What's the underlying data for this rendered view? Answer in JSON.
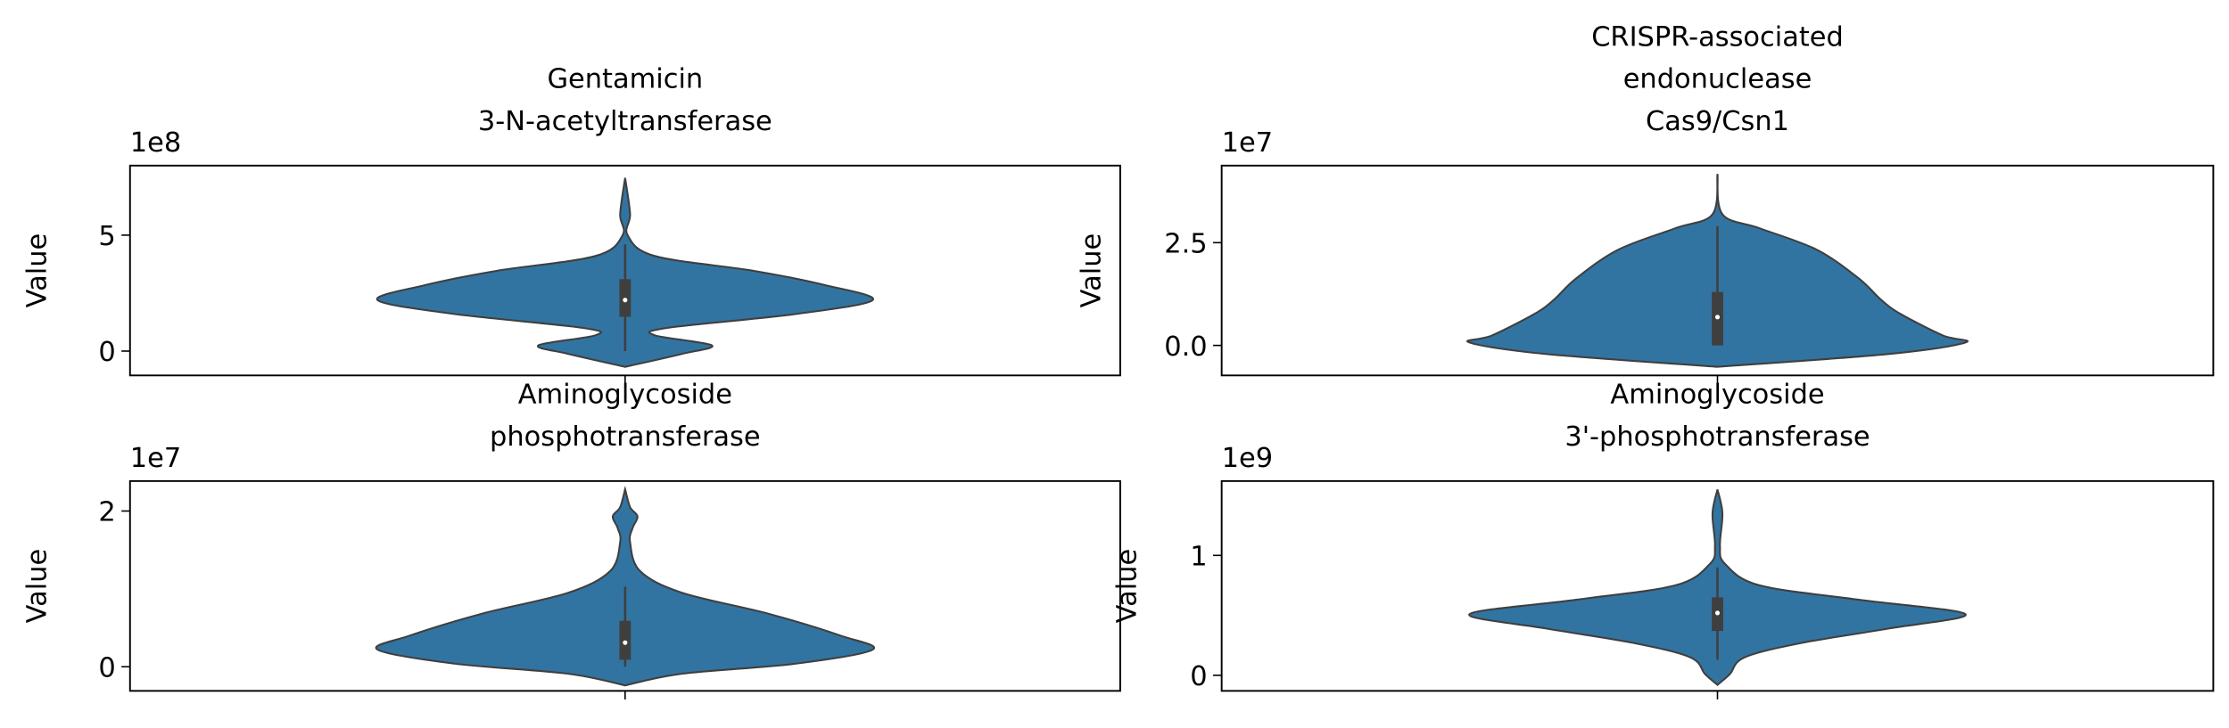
{
  "chart_data": [
    {
      "type": "violin",
      "title": [
        "Gentamicin",
        "3-N-acetyltransferase"
      ],
      "y_label": "Value",
      "offset_label": "1e8",
      "ylim": [
        -1.05,
        8.0
      ],
      "yticks": [
        0,
        5
      ],
      "color": "#3274a1",
      "violin": {
        "y": [
          7.47,
          5.9,
          5.0,
          4.1,
          3.46,
          2.84,
          2.2,
          1.6,
          1.0,
          0.68,
          0.25,
          -0.12,
          -0.68
        ],
        "density": [
          0,
          0.02,
          0.01,
          0.12,
          0.52,
          0.81,
          1,
          0.69,
          0.17,
          0.12,
          0.35,
          0.23,
          0
        ]
      },
      "box": {
        "whisker_low": 0,
        "q1": 1.48,
        "median": 2.2,
        "q3": 3.1,
        "whisker_high": 4.6
      }
    },
    {
      "type": "violin",
      "title": [
        "CRISPR-associated",
        "endonuclease",
        "Cas9/Csn1"
      ],
      "y_label": "Value",
      "offset_label": "1e7",
      "ylim": [
        -0.73,
        4.375
      ],
      "yticks": [
        {
          "value": 0,
          "label": "0.0"
        },
        2.5
      ],
      "color": "#3274a1",
      "violin": {
        "y": [
          4.17,
          3.19,
          2.85,
          2.33,
          1.63,
          1.11,
          0.76,
          0.24,
          0.07,
          -0.21,
          -0.52
        ],
        "density": [
          0,
          0.02,
          0.17,
          0.4,
          0.57,
          0.66,
          0.74,
          0.91,
          1,
          0.69,
          0
        ]
      },
      "box": {
        "whisker_low": 0,
        "q1": 0,
        "median": 0.69,
        "q3": 1.3,
        "whisker_high": 2.9
      }
    },
    {
      "type": "violin",
      "title": [
        "Aminoglycoside",
        "phosphotransferase"
      ],
      "y_label": "Value",
      "offset_label": "1e7",
      "ylim": [
        -0.31,
        2.385
      ],
      "yticks": [
        0,
        2
      ],
      "color": "#3274a1",
      "violin": {
        "y": [
          2.28,
          2.05,
          1.93,
          1.78,
          1.6,
          1.23,
          0.95,
          0.68,
          0.4,
          0.22,
          0.04,
          -0.09,
          -0.24
        ],
        "density": [
          0,
          0.02,
          0.05,
          0.03,
          0.02,
          0.06,
          0.23,
          0.58,
          0.87,
          1,
          0.69,
          0.23,
          0
        ]
      },
      "box": {
        "whisker_low": 0,
        "q1": 0.09,
        "median": 0.31,
        "q3": 0.59,
        "whisker_high": 1.03
      }
    },
    {
      "type": "violin",
      "title": [
        "Aminoglycoside",
        "3'-phosphotransferase"
      ],
      "y_label": "Value",
      "offset_label": "1e9",
      "ylim": [
        -0.13,
        1.62
      ],
      "yticks": [
        0,
        1
      ],
      "color": "#3274a1",
      "violin": {
        "y": [
          1.55,
          1.35,
          1.08,
          0.93,
          0.75,
          0.63,
          0.51,
          0.39,
          0.27,
          0.15,
          0.01,
          -0.08
        ],
        "density": [
          0,
          0.02,
          0.01,
          0.03,
          0.17,
          0.57,
          1,
          0.69,
          0.34,
          0.11,
          0.05,
          0
        ]
      },
      "box": {
        "whisker_low": 0.13,
        "q1": 0.37,
        "median": 0.52,
        "q3": 0.65,
        "whisker_high": 0.9
      }
    }
  ]
}
